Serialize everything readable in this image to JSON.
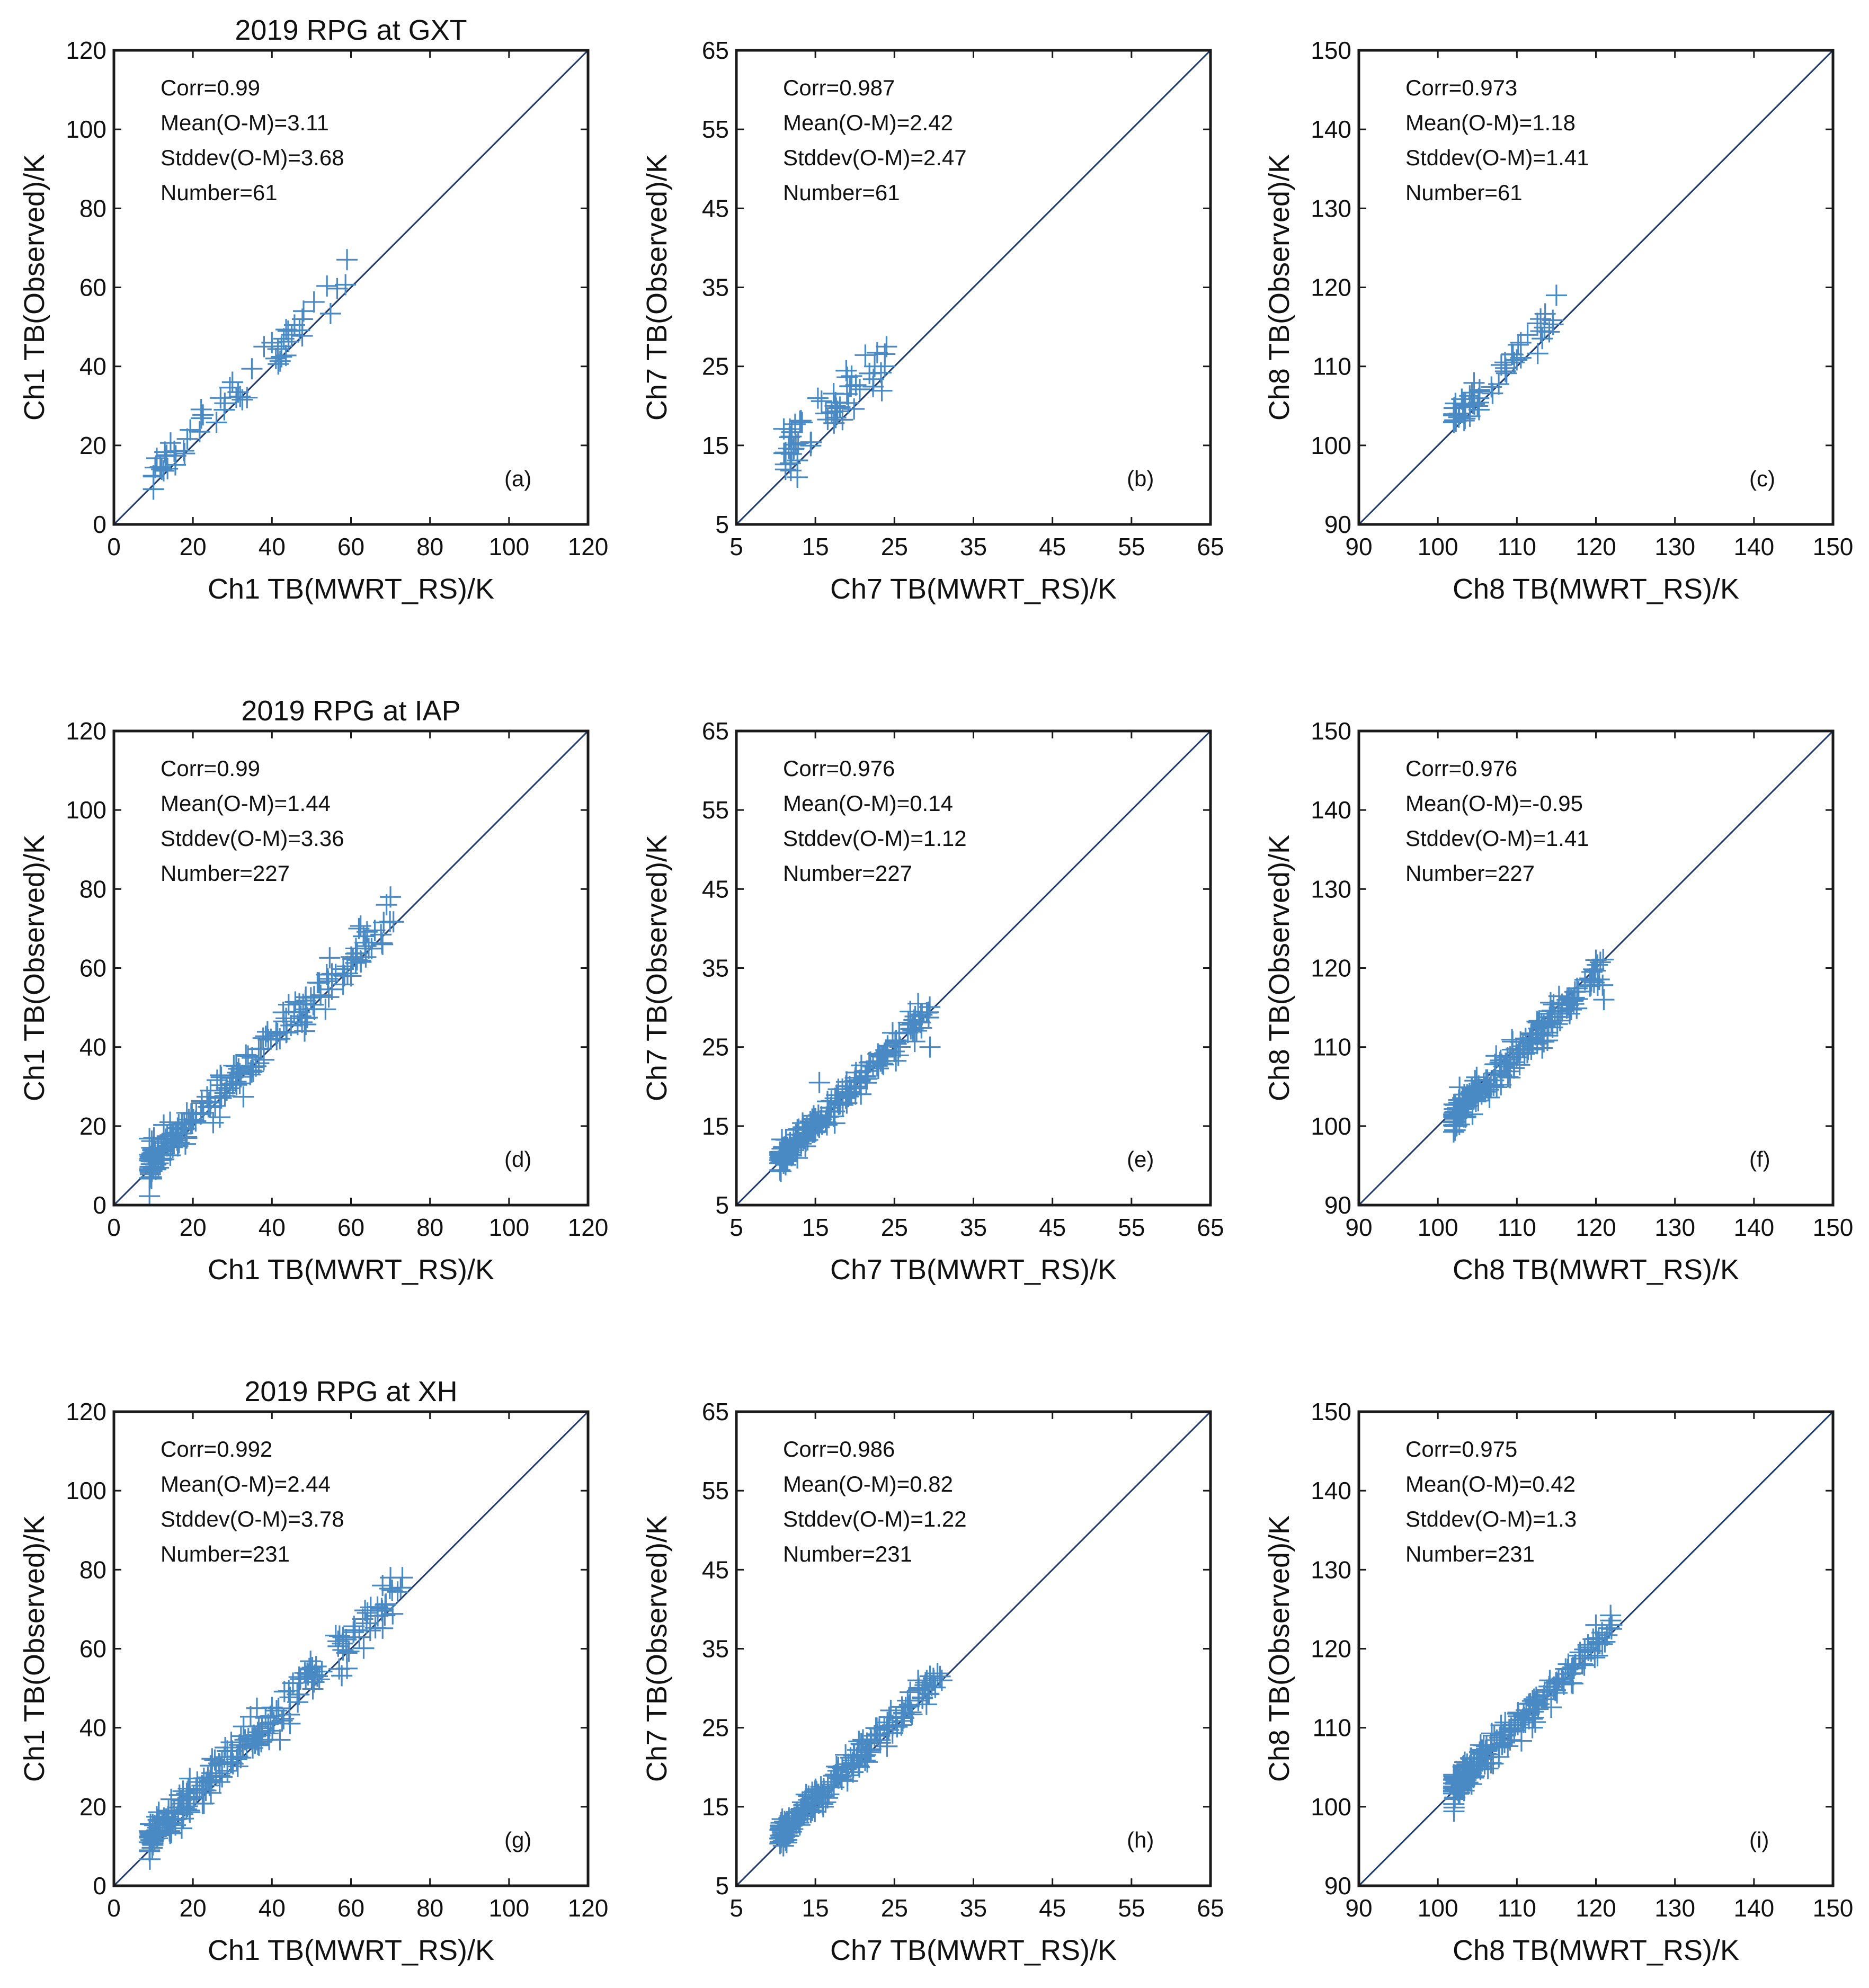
{
  "chart_data": [
    {
      "id": "a",
      "type": "scatter",
      "letter": "(a)",
      "title": "2019 RPG at GXT",
      "xlabel": "Ch1 TB(MWRT_RS)/K",
      "ylabel": "Ch1 TB(Observed)/K",
      "xlim": [
        0,
        120
      ],
      "ylim": [
        0,
        120
      ],
      "ticks": [
        0,
        20,
        40,
        60,
        80,
        100,
        120
      ],
      "stats": [
        "Corr=0.99",
        "Mean(O-M)=3.11",
        "Stddev(O-M)=3.68",
        "Number=61"
      ],
      "points_summary": {
        "count": 61,
        "x_range": [
          10,
          59
        ],
        "mean_bias": 3.11,
        "std": 3.68
      },
      "outliers": [
        [
          59,
          67
        ],
        [
          48,
          54
        ],
        [
          40,
          46
        ],
        [
          43,
          47
        ],
        [
          45,
          48
        ],
        [
          38,
          45
        ],
        [
          41,
          42
        ],
        [
          30,
          36
        ],
        [
          27,
          32
        ]
      ]
    },
    {
      "id": "b",
      "type": "scatter",
      "letter": "(b)",
      "title": "",
      "xlabel": "Ch7 TB(MWRT_RS)/K",
      "ylabel": "Ch7 TB(Observed)/K",
      "xlim": [
        5,
        65
      ],
      "ylim": [
        5,
        65
      ],
      "ticks": [
        5,
        15,
        25,
        35,
        45,
        55,
        65
      ],
      "stats": [
        "Corr=0.987",
        "Mean(O-M)=2.42",
        "Stddev(O-M)=2.47",
        "Number=61"
      ],
      "points_summary": {
        "count": 61,
        "x_range": [
          11,
          24
        ],
        "mean_bias": 2.42,
        "std": 2.47
      },
      "outliers": [
        [
          24,
          27.5
        ],
        [
          22.5,
          25
        ],
        [
          19.5,
          22.5
        ],
        [
          19,
          21.5
        ],
        [
          17.5,
          20
        ]
      ]
    },
    {
      "id": "c",
      "type": "scatter",
      "letter": "(c)",
      "title": "",
      "xlabel": "Ch8 TB(MWRT_RS)/K",
      "ylabel": "Ch8 TB(Observed)/K",
      "xlim": [
        90,
        150
      ],
      "ylim": [
        90,
        150
      ],
      "ticks": [
        90,
        100,
        110,
        120,
        130,
        140,
        150
      ],
      "stats": [
        "Corr=0.973",
        "Mean(O-M)=1.18",
        "Stddev(O-M)=1.41",
        "Number=61"
      ],
      "points_summary": {
        "count": 61,
        "x_range": [
          102,
          115
        ],
        "mean_bias": 1.18,
        "std": 1.41
      },
      "outliers": [
        [
          115,
          119
        ],
        [
          113,
          116
        ],
        [
          110.5,
          113
        ],
        [
          109.5,
          111.5
        ],
        [
          108.5,
          110.5
        ]
      ]
    },
    {
      "id": "d",
      "type": "scatter",
      "letter": "(d)",
      "title": "2019 RPG at IAP",
      "xlabel": "Ch1 TB(MWRT_RS)/K",
      "ylabel": "Ch1 TB(Observed)/K",
      "xlim": [
        0,
        120
      ],
      "ylim": [
        0,
        120
      ],
      "ticks": [
        0,
        20,
        40,
        60,
        80,
        100,
        120
      ],
      "stats": [
        "Corr=0.99",
        "Mean(O-M)=1.44",
        "Stddev(O-M)=3.36",
        "Number=227"
      ],
      "points_summary": {
        "count": 227,
        "x_range": [
          9,
          71
        ],
        "mean_bias": 1.44,
        "std": 3.36
      },
      "outliers": [
        [
          70,
          78
        ],
        [
          69,
          76
        ],
        [
          68,
          66
        ],
        [
          62,
          70
        ],
        [
          60,
          58
        ]
      ]
    },
    {
      "id": "e",
      "type": "scatter",
      "letter": "(e)",
      "title": "",
      "xlabel": "Ch7 TB(MWRT_RS)/K",
      "ylabel": "Ch7 TB(Observed)/K",
      "xlim": [
        5,
        65
      ],
      "ylim": [
        5,
        65
      ],
      "ticks": [
        5,
        15,
        25,
        35,
        45,
        55,
        65
      ],
      "stats": [
        "Corr=0.976",
        "Mean(O-M)=0.14",
        "Stddev(O-M)=1.12",
        "Number=227"
      ],
      "points_summary": {
        "count": 227,
        "x_range": [
          10.5,
          29.5
        ],
        "mean_bias": 0.14,
        "std": 1.12
      },
      "outliers": [
        [
          29.5,
          25
        ],
        [
          28,
          30.5
        ],
        [
          27,
          29.5
        ],
        [
          15.5,
          20.5
        ]
      ]
    },
    {
      "id": "f",
      "type": "scatter",
      "letter": "(f)",
      "title": "",
      "xlabel": "Ch8 TB(MWRT_RS)/K",
      "ylabel": "Ch8 TB(Observed)/K",
      "xlim": [
        90,
        150
      ],
      "ylim": [
        90,
        150
      ],
      "ticks": [
        90,
        100,
        110,
        120,
        130,
        140,
        150
      ],
      "stats": [
        "Corr=0.976",
        "Mean(O-M)=-0.95",
        "Stddev(O-M)=1.41",
        "Number=227"
      ],
      "points_summary": {
        "count": 227,
        "x_range": [
          102,
          121
        ],
        "mean_bias": -0.95,
        "std": 1.41
      },
      "outliers": [
        [
          121,
          116
        ],
        [
          120,
          121
        ],
        [
          119.5,
          119.5
        ]
      ]
    },
    {
      "id": "g",
      "type": "scatter",
      "letter": "(g)",
      "title": "2019 RPG at XH",
      "xlabel": "Ch1 TB(MWRT_RS)/K",
      "ylabel": "Ch1 TB(Observed)/K",
      "xlim": [
        0,
        120
      ],
      "ylim": [
        0,
        120
      ],
      "ticks": [
        0,
        20,
        40,
        60,
        80,
        100,
        120
      ],
      "stats": [
        "Corr=0.992",
        "Mean(O-M)=2.44",
        "Stddev(O-M)=3.78",
        "Number=231"
      ],
      "points_summary": {
        "count": 231,
        "x_range": [
          9,
          73
        ],
        "mean_bias": 2.44,
        "std": 3.78
      },
      "outliers": [
        [
          73,
          78
        ],
        [
          70,
          78
        ],
        [
          68,
          76
        ],
        [
          59,
          55
        ]
      ]
    },
    {
      "id": "h",
      "type": "scatter",
      "letter": "(h)",
      "title": "",
      "xlabel": "Ch7 TB(MWRT_RS)/K",
      "ylabel": "Ch7 TB(Observed)/K",
      "xlim": [
        5,
        65
      ],
      "ylim": [
        5,
        65
      ],
      "ticks": [
        5,
        15,
        25,
        35,
        45,
        55,
        65
      ],
      "stats": [
        "Corr=0.986",
        "Mean(O-M)=0.82",
        "Stddev(O-M)=1.22",
        "Number=231"
      ],
      "points_summary": {
        "count": 231,
        "x_range": [
          10.5,
          31
        ],
        "mean_bias": 0.82,
        "std": 1.22
      },
      "outliers": [
        [
          31,
          31
        ],
        [
          28,
          31
        ],
        [
          27,
          29.5
        ]
      ]
    },
    {
      "id": "i",
      "type": "scatter",
      "letter": "(i)",
      "title": "",
      "xlabel": "Ch8 TB(MWRT_RS)/K",
      "ylabel": "Ch8 TB(Observed)/K",
      "xlim": [
        90,
        150
      ],
      "ylim": [
        90,
        150
      ],
      "ticks": [
        90,
        100,
        110,
        120,
        130,
        140,
        150
      ],
      "stats": [
        "Corr=0.975",
        "Mean(O-M)=0.42",
        "Stddev(O-M)=1.3",
        "Number=231"
      ],
      "points_summary": {
        "count": 231,
        "x_range": [
          102,
          122
        ],
        "mean_bias": 0.42,
        "std": 1.3
      },
      "outliers": [
        [
          122,
          123
        ],
        [
          120,
          123
        ],
        [
          119,
          120.5
        ]
      ]
    }
  ],
  "colors": {
    "marker": "#4a8ac4",
    "line": "#1f3a73",
    "axis": "#1a1a1a"
  }
}
